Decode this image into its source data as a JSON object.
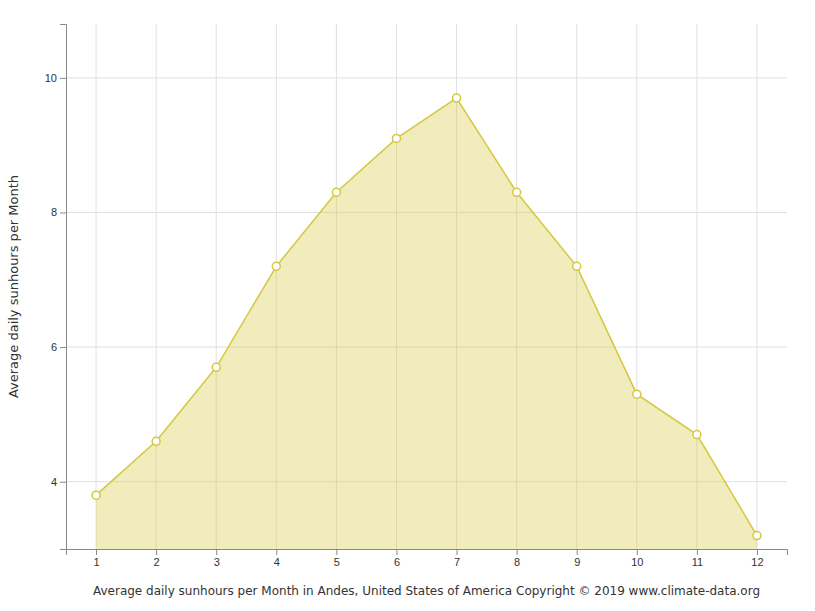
{
  "chart_data": {
    "type": "area",
    "x": [
      1,
      2,
      3,
      4,
      5,
      6,
      7,
      8,
      9,
      10,
      11,
      12
    ],
    "values": [
      3.8,
      4.6,
      5.7,
      7.2,
      8.3,
      9.1,
      9.7,
      8.3,
      7.2,
      5.3,
      4.7,
      3.2
    ],
    "xlabel": "Average daily sunhours per Month in Andes, United States of America Copyright © 2019 www.climate-data.org",
    "ylabel": "Average daily sunhours per Month",
    "xlim": [
      0.5,
      12.5
    ],
    "ylim": [
      3.0,
      10.8
    ],
    "xticks": [
      1,
      2,
      3,
      4,
      5,
      6,
      7,
      8,
      9,
      10,
      11,
      12
    ],
    "yticks": [
      4,
      6,
      8,
      10
    ],
    "grid": true,
    "color": "#D4C840",
    "marker": "circle"
  }
}
